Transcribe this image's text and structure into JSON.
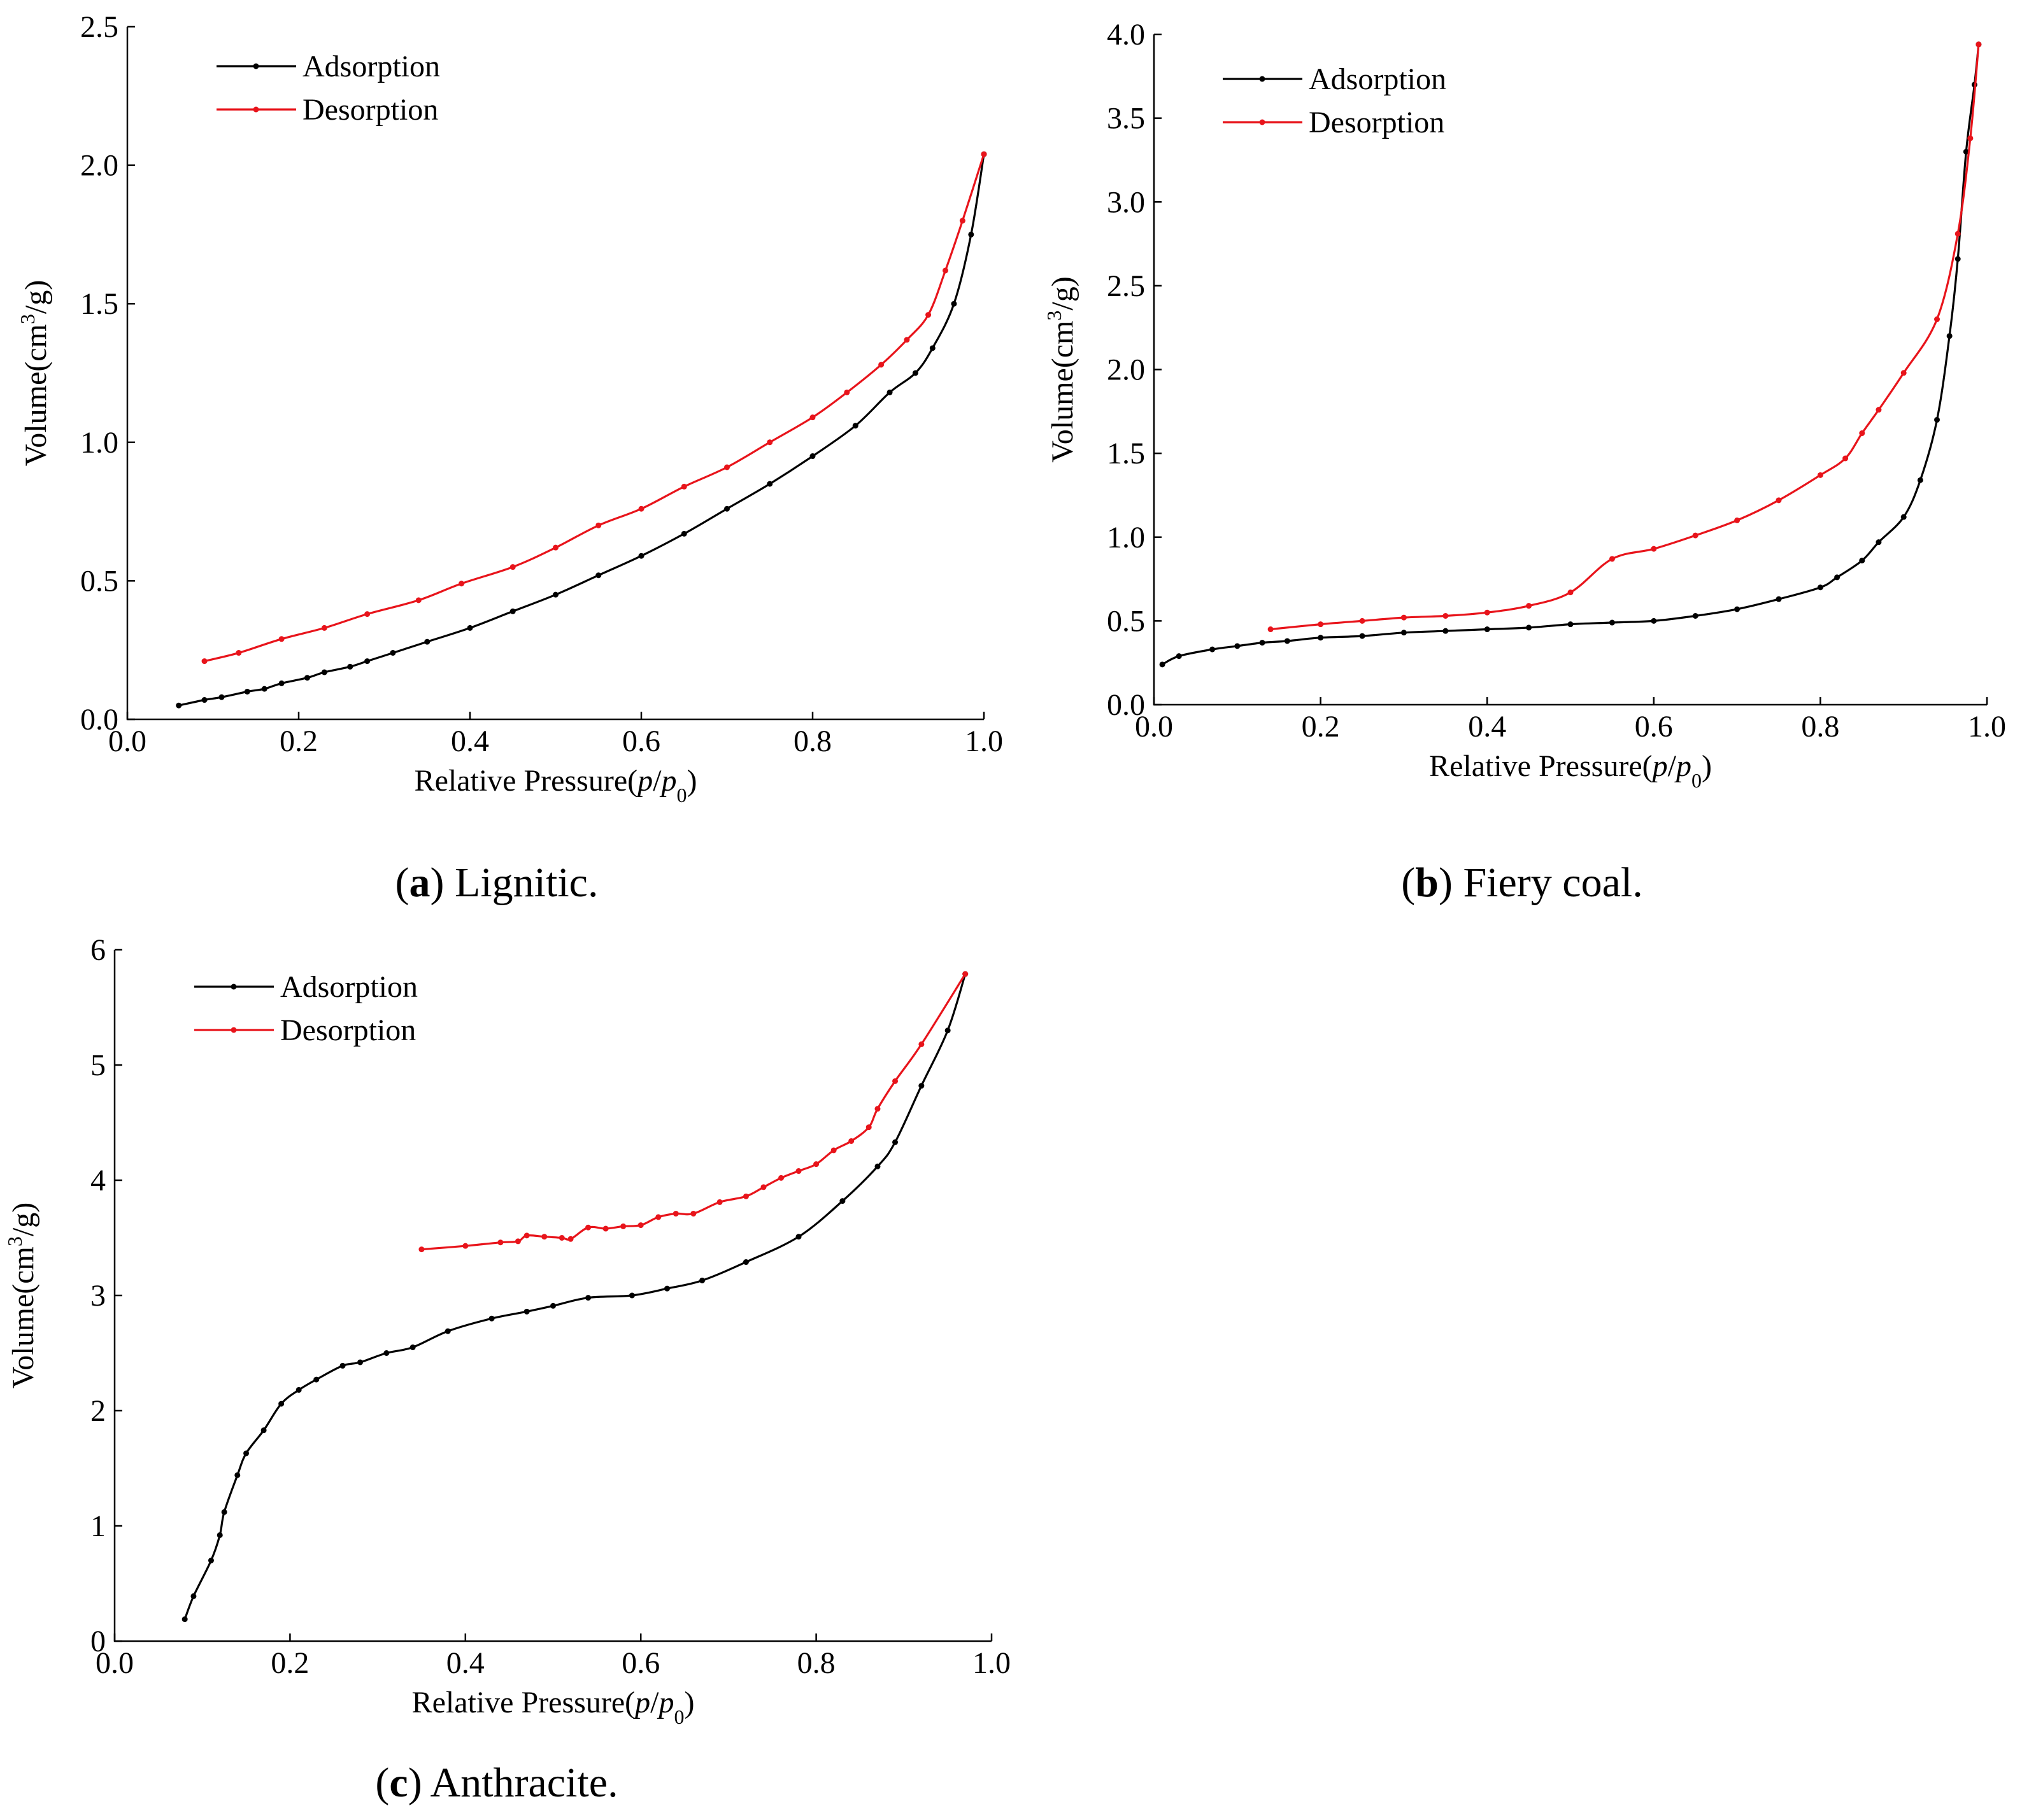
{
  "figure": {
    "captions": [
      {
        "letter": "a",
        "text": " Lignitic."
      },
      {
        "letter": "b",
        "text": " Fiery coal."
      },
      {
        "letter": "c",
        "text": " Anthracite."
      }
    ]
  },
  "colors": {
    "adsorption": "#000000",
    "desorption": "#e8141b"
  },
  "chart_data": [
    {
      "type": "line",
      "title": "(a) Lignitic.",
      "xlabel": "Relative Pressure(p/p0)",
      "ylabel": "Volume(cm3/g)",
      "xlim": [
        0.0,
        1.0
      ],
      "ylim": [
        0.0,
        2.5
      ],
      "xticks": [
        "0.0",
        "0.2",
        "0.4",
        "0.6",
        "0.8",
        "1.0"
      ],
      "yticks": [
        "0.0",
        "0.5",
        "1.0",
        "1.5",
        "2.0",
        "2.5"
      ],
      "legend": "top-left",
      "series": [
        {
          "name": "Adsorption",
          "x": [
            0.06,
            0.09,
            0.11,
            0.14,
            0.16,
            0.18,
            0.21,
            0.23,
            0.26,
            0.28,
            0.31,
            0.35,
            0.4,
            0.45,
            0.5,
            0.55,
            0.6,
            0.65,
            0.7,
            0.75,
            0.8,
            0.85,
            0.89,
            0.92,
            0.94,
            0.965,
            0.985,
            1.0
          ],
          "y": [
            0.05,
            0.07,
            0.08,
            0.1,
            0.11,
            0.13,
            0.15,
            0.17,
            0.19,
            0.21,
            0.24,
            0.28,
            0.33,
            0.39,
            0.45,
            0.52,
            0.59,
            0.67,
            0.76,
            0.85,
            0.95,
            1.06,
            1.18,
            1.25,
            1.34,
            1.5,
            1.75,
            2.04
          ]
        },
        {
          "name": "Desorption",
          "x": [
            0.09,
            0.13,
            0.18,
            0.23,
            0.28,
            0.34,
            0.39,
            0.45,
            0.5,
            0.55,
            0.6,
            0.65,
            0.7,
            0.75,
            0.8,
            0.84,
            0.88,
            0.91,
            0.935,
            0.955,
            0.975,
            1.0
          ],
          "y": [
            0.21,
            0.24,
            0.29,
            0.33,
            0.38,
            0.43,
            0.49,
            0.55,
            0.62,
            0.7,
            0.76,
            0.84,
            0.91,
            1.0,
            1.09,
            1.18,
            1.28,
            1.37,
            1.46,
            1.62,
            1.8,
            2.04
          ]
        }
      ]
    },
    {
      "type": "line",
      "title": "(b) Fiery coal.",
      "xlabel": "Relative Pressure(p/p0)",
      "ylabel": "Volume(cm3/g)",
      "xlim": [
        0.0,
        1.0
      ],
      "ylim": [
        0.0,
        4.0
      ],
      "xticks": [
        "0.0",
        "0.2",
        "0.4",
        "0.6",
        "0.8",
        "1.0"
      ],
      "yticks": [
        "0.0",
        "0.5",
        "1.0",
        "1.5",
        "2.0",
        "2.5",
        "3.0",
        "3.5",
        "4.0"
      ],
      "legend": "top-left",
      "series": [
        {
          "name": "Adsorption",
          "x": [
            0.01,
            0.03,
            0.07,
            0.1,
            0.13,
            0.16,
            0.2,
            0.25,
            0.3,
            0.35,
            0.4,
            0.45,
            0.5,
            0.55,
            0.6,
            0.65,
            0.7,
            0.75,
            0.8,
            0.82,
            0.85,
            0.87,
            0.9,
            0.92,
            0.94,
            0.955,
            0.965,
            0.975,
            0.985,
            0.99
          ],
          "y": [
            0.24,
            0.29,
            0.33,
            0.35,
            0.37,
            0.38,
            0.4,
            0.41,
            0.43,
            0.44,
            0.45,
            0.46,
            0.48,
            0.49,
            0.5,
            0.53,
            0.57,
            0.63,
            0.7,
            0.76,
            0.86,
            0.97,
            1.12,
            1.34,
            1.7,
            2.2,
            2.66,
            3.3,
            3.7,
            3.94
          ]
        },
        {
          "name": "Desorption",
          "x": [
            0.14,
            0.2,
            0.25,
            0.3,
            0.35,
            0.4,
            0.45,
            0.5,
            0.55,
            0.6,
            0.65,
            0.7,
            0.75,
            0.8,
            0.83,
            0.85,
            0.87,
            0.9,
            0.94,
            0.965,
            0.98,
            0.99
          ],
          "y": [
            0.45,
            0.48,
            0.5,
            0.52,
            0.53,
            0.55,
            0.59,
            0.67,
            0.87,
            0.93,
            1.01,
            1.1,
            1.22,
            1.37,
            1.47,
            1.62,
            1.76,
            1.98,
            2.3,
            2.81,
            3.38,
            3.94
          ]
        }
      ]
    },
    {
      "type": "line",
      "title": "(c) Anthracite.",
      "xlabel": "Relative Pressure(p/p0)",
      "ylabel": "Volume(cm3/g)",
      "xlim": [
        0.0,
        1.0
      ],
      "ylim": [
        0,
        6
      ],
      "xticks": [
        "0.0",
        "0.2",
        "0.4",
        "0.6",
        "0.8",
        "1.0"
      ],
      "yticks": [
        "0",
        "1",
        "2",
        "3",
        "4",
        "5",
        "6"
      ],
      "legend": "top-left",
      "series": [
        {
          "name": "Adsorption",
          "x": [
            0.08,
            0.09,
            0.11,
            0.12,
            0.125,
            0.14,
            0.15,
            0.17,
            0.19,
            0.21,
            0.23,
            0.26,
            0.28,
            0.31,
            0.34,
            0.38,
            0.43,
            0.47,
            0.5,
            0.54,
            0.59,
            0.63,
            0.67,
            0.72,
            0.78,
            0.83,
            0.87,
            0.89,
            0.92,
            0.95,
            0.97
          ],
          "y": [
            0.19,
            0.39,
            0.7,
            0.92,
            1.12,
            1.44,
            1.63,
            1.83,
            2.06,
            2.18,
            2.27,
            2.39,
            2.42,
            2.5,
            2.55,
            2.69,
            2.8,
            2.86,
            2.91,
            2.98,
            3.0,
            3.06,
            3.13,
            3.29,
            3.51,
            3.82,
            4.12,
            4.33,
            4.82,
            5.3,
            5.79
          ]
        },
        {
          "name": "Desorption",
          "x": [
            0.35,
            0.4,
            0.44,
            0.46,
            0.47,
            0.49,
            0.51,
            0.52,
            0.54,
            0.56,
            0.58,
            0.6,
            0.62,
            0.64,
            0.66,
            0.69,
            0.72,
            0.74,
            0.76,
            0.78,
            0.8,
            0.82,
            0.84,
            0.86,
            0.87,
            0.89,
            0.92,
            0.97
          ],
          "y": [
            3.4,
            3.43,
            3.46,
            3.47,
            3.52,
            3.51,
            3.5,
            3.49,
            3.59,
            3.58,
            3.6,
            3.61,
            3.68,
            3.71,
            3.71,
            3.81,
            3.86,
            3.94,
            4.02,
            4.08,
            4.14,
            4.26,
            4.34,
            4.46,
            4.62,
            4.86,
            5.18,
            5.79
          ]
        }
      ]
    }
  ]
}
